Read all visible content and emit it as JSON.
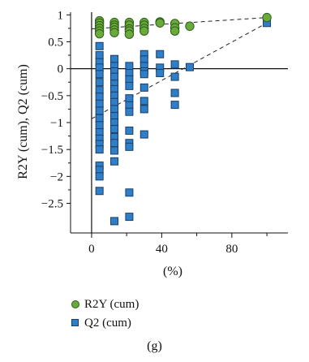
{
  "chart_data": {
    "type": "scatter",
    "xlabel": "(%)",
    "ylabel": "R2Y (cum), Q2 (cum)",
    "xlim": [
      -12,
      112
    ],
    "ylim": [
      -3.05,
      1.05
    ],
    "x_ticks": [
      0,
      40,
      80
    ],
    "y_ticks": [
      1,
      0.5,
      0,
      -0.5,
      -1,
      -1.5,
      -2,
      -2.5
    ],
    "y_tick_labels": [
      "1",
      "0.5",
      "0",
      "−0.5",
      "−1",
      "−1.5",
      "−2",
      "−2.5"
    ],
    "grid": false,
    "legend_position": "bottom",
    "series": [
      {
        "name": "R2Y (cum)",
        "marker": "circle",
        "color": "#6aaa3a",
        "points": [
          [
            4.5,
            0.89
          ],
          [
            4.5,
            0.85
          ],
          [
            4.5,
            0.8
          ],
          [
            4.5,
            0.75
          ],
          [
            4.5,
            0.7
          ],
          [
            4.5,
            0.65
          ],
          [
            13,
            0.86
          ],
          [
            13,
            0.81
          ],
          [
            13,
            0.77
          ],
          [
            13,
            0.72
          ],
          [
            13,
            0.67
          ],
          [
            21.5,
            0.86
          ],
          [
            21.5,
            0.81
          ],
          [
            21.5,
            0.74
          ],
          [
            21.5,
            0.7
          ],
          [
            21.5,
            0.64
          ],
          [
            30,
            0.86
          ],
          [
            30,
            0.81
          ],
          [
            30,
            0.75
          ],
          [
            30,
            0.7
          ],
          [
            39,
            0.87
          ],
          [
            39,
            0.85
          ],
          [
            47.5,
            0.84
          ],
          [
            47.5,
            0.76
          ],
          [
            47.5,
            0.7
          ],
          [
            56,
            0.79
          ],
          [
            100,
            0.95
          ]
        ]
      },
      {
        "name": "Q2 (cum)",
        "marker": "square",
        "color": "#2f7fc8",
        "points": [
          [
            4.5,
            0.42
          ],
          [
            4.5,
            0.25
          ],
          [
            4.5,
            0.12
          ],
          [
            4.5,
            0.02
          ],
          [
            4.5,
            -0.1
          ],
          [
            4.5,
            -0.25
          ],
          [
            4.5,
            -0.4
          ],
          [
            4.5,
            -0.52
          ],
          [
            4.5,
            -0.65
          ],
          [
            4.5,
            -0.78
          ],
          [
            4.5,
            -0.92
          ],
          [
            4.5,
            -1.05
          ],
          [
            4.5,
            -1.18
          ],
          [
            4.5,
            -1.3
          ],
          [
            4.5,
            -1.4
          ],
          [
            4.5,
            -1.5
          ],
          [
            4.5,
            -1.8
          ],
          [
            4.5,
            -1.88
          ],
          [
            4.5,
            -2.0
          ],
          [
            4.5,
            -2.27
          ],
          [
            13,
            0.18
          ],
          [
            13,
            0.05
          ],
          [
            13,
            -0.05
          ],
          [
            13,
            -0.15
          ],
          [
            13,
            -0.28
          ],
          [
            13,
            -0.38
          ],
          [
            13,
            -0.5
          ],
          [
            13,
            -0.62
          ],
          [
            13,
            -0.75
          ],
          [
            13,
            -0.88
          ],
          [
            13,
            -1.0
          ],
          [
            13,
            -1.12
          ],
          [
            13,
            -1.27
          ],
          [
            13,
            -1.38
          ],
          [
            13,
            -1.52
          ],
          [
            13,
            -1.72
          ],
          [
            13,
            -2.83
          ],
          [
            21.5,
            0.05
          ],
          [
            21.5,
            -0.08
          ],
          [
            21.5,
            -0.2
          ],
          [
            21.5,
            -0.32
          ],
          [
            21.5,
            -0.55
          ],
          [
            21.5,
            -0.68
          ],
          [
            21.5,
            -0.8
          ],
          [
            21.5,
            -1.15
          ],
          [
            21.5,
            -1.38
          ],
          [
            21.5,
            -1.45
          ],
          [
            21.5,
            -2.3
          ],
          [
            21.5,
            -2.75
          ],
          [
            30,
            0.27
          ],
          [
            30,
            0.17
          ],
          [
            30,
            0.05
          ],
          [
            30,
            -0.05
          ],
          [
            30,
            -0.1
          ],
          [
            30,
            -0.35
          ],
          [
            30,
            -0.6
          ],
          [
            30,
            -0.75
          ],
          [
            30,
            -1.22
          ],
          [
            39,
            0.27
          ],
          [
            39,
            0.02
          ],
          [
            39,
            -0.08
          ],
          [
            47.5,
            0.08
          ],
          [
            47.5,
            -0.15
          ],
          [
            47.5,
            -0.45
          ],
          [
            47.5,
            -0.67
          ],
          [
            56,
            0.03
          ],
          [
            100,
            0.85
          ]
        ]
      }
    ],
    "reference_lines": [
      {
        "series": "R2Y (cum)",
        "from": [
          0,
          0.74
        ],
        "to": [
          100,
          0.95
        ]
      },
      {
        "series": "Q2 (cum)",
        "from": [
          0,
          -0.93
        ],
        "to": [
          100,
          0.85
        ]
      }
    ],
    "caption": "(g)"
  }
}
